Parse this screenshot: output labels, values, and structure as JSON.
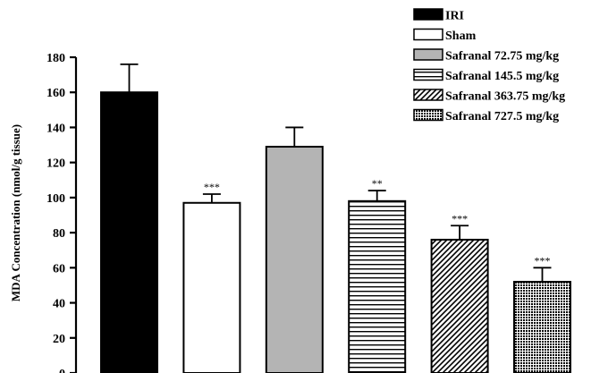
{
  "chart_data": {
    "type": "bar",
    "title": "",
    "xlabel": "",
    "ylabel": "MDA Concentration (nmol/g tissue)",
    "ylim": [
      0,
      180
    ],
    "yticks": [
      0,
      20,
      40,
      60,
      80,
      100,
      120,
      140,
      160,
      180
    ],
    "categories": [
      "IRI",
      "Sham",
      "Safranal 72.75 mg/kg",
      "Safranal 145.5 mg/kg",
      "Safranal 363.75 mg/kg",
      "Safranal 727.5 mg/kg"
    ],
    "values": [
      160,
      97,
      129,
      98,
      76,
      52
    ],
    "errors": [
      16,
      5,
      11,
      6,
      8,
      8
    ],
    "significance": [
      "",
      "***",
      "",
      "**",
      "***",
      "***"
    ],
    "fills": [
      "solid-black",
      "white",
      "solid-gray",
      "horizontal-lines",
      "diagonal-lines",
      "crosshatch"
    ],
    "colors": {
      "black": "#000000",
      "gray": "#b4b4b4",
      "white": "#ffffff"
    },
    "legend_position": "top-right",
    "grid": false
  }
}
